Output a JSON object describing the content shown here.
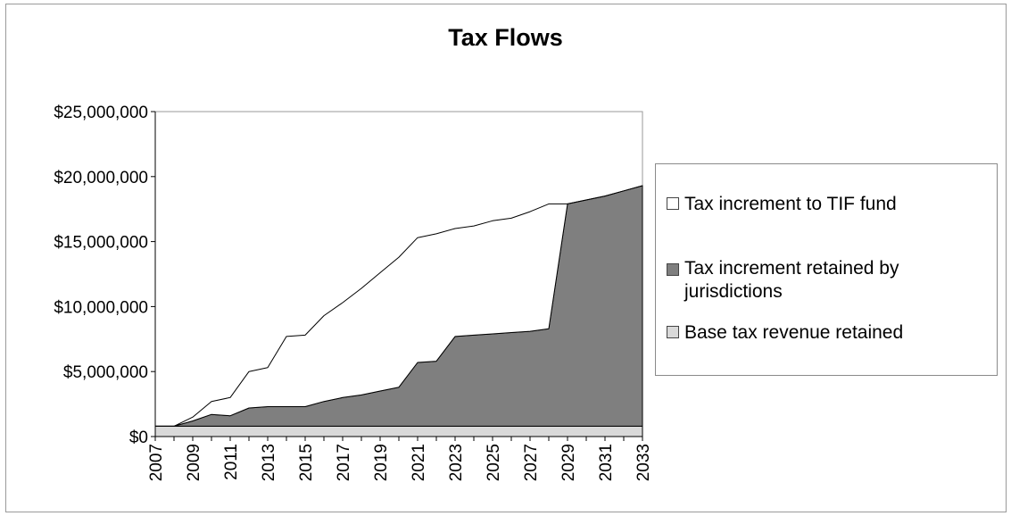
{
  "chart_data": {
    "type": "area",
    "title": "Tax Flows",
    "x": [
      2007,
      2008,
      2009,
      2010,
      2011,
      2012,
      2013,
      2014,
      2015,
      2016,
      2017,
      2018,
      2019,
      2020,
      2021,
      2022,
      2023,
      2024,
      2025,
      2026,
      2027,
      2028,
      2029,
      2030,
      2031,
      2032,
      2033
    ],
    "x_tick_labels": [
      "2007",
      "2009",
      "2011",
      "2013",
      "2015",
      "2017",
      "2019",
      "2021",
      "2023",
      "2025",
      "2027",
      "2029",
      "2031",
      "2033"
    ],
    "y_tick_labels": [
      "$0",
      "$5,000,000",
      "$10,000,000",
      "$15,000,000",
      "$20,000,000",
      "$25,000,000"
    ],
    "ylim": [
      0,
      25000000
    ],
    "stacked": true,
    "series": [
      {
        "name": "Base tax revenue retained",
        "color": "#d9d9d9",
        "values": [
          800000,
          800000,
          800000,
          800000,
          800000,
          800000,
          800000,
          800000,
          800000,
          800000,
          800000,
          800000,
          800000,
          800000,
          800000,
          800000,
          800000,
          800000,
          800000,
          800000,
          800000,
          800000,
          800000,
          800000,
          800000,
          800000,
          800000
        ]
      },
      {
        "name": "Tax increment retained by jurisdictions",
        "color": "#7f7f7f",
        "values": [
          0,
          0,
          400000,
          900000,
          800000,
          1400000,
          1500000,
          1500000,
          1500000,
          1900000,
          2200000,
          2400000,
          2700000,
          3000000,
          4900000,
          5000000,
          6900000,
          7000000,
          7100000,
          7200000,
          7300000,
          7500000,
          17100000,
          17400000,
          17700000,
          18100000,
          18500000
        ]
      },
      {
        "name": "Tax increment to TIF fund",
        "color": "#ffffff",
        "values": [
          0,
          0,
          300000,
          1000000,
          1400000,
          2800000,
          3000000,
          5400000,
          5500000,
          6600000,
          7300000,
          8200000,
          9100000,
          10000000,
          9600000,
          9800000,
          8300000,
          8400000,
          8700000,
          8800000,
          9200000,
          9600000,
          0,
          0,
          0,
          0,
          0
        ]
      }
    ],
    "legend_position": "right",
    "grid": false
  }
}
